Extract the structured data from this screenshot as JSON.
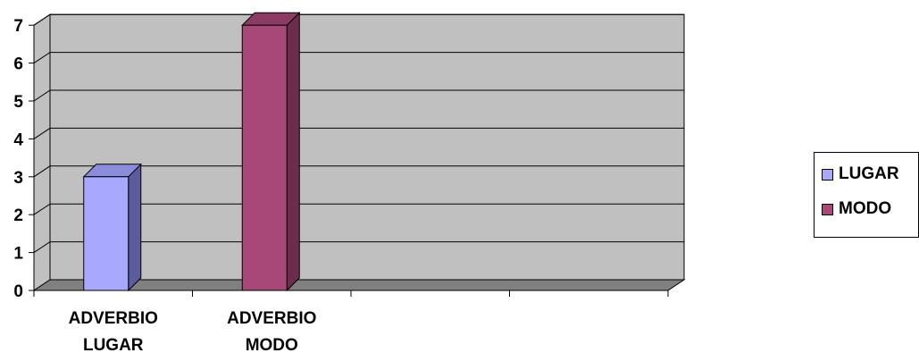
{
  "chart_data": {
    "type": "bar",
    "categories": [
      [
        "ADVERBIO",
        "LUGAR"
      ],
      [
        "ADVERBIO",
        "MODO"
      ],
      [
        "",
        ""
      ],
      [
        "",
        ""
      ]
    ],
    "series": [
      {
        "name": "LUGAR",
        "values": [
          3,
          null,
          null,
          null
        ],
        "color": "#a8a8ff"
      },
      {
        "name": "MODO",
        "values": [
          null,
          7,
          null,
          null
        ],
        "color": "#a84878"
      }
    ],
    "yticks": [
      "0",
      "1",
      "2",
      "3",
      "4",
      "5",
      "6",
      "7"
    ],
    "ylim": [
      0,
      7
    ],
    "grid": true,
    "three_d": true,
    "legend_position": "right",
    "colors": {
      "wall": "#c0c0c0",
      "floor": "#808080",
      "gridline": "#000000",
      "lugar_side": "#5c5c9c",
      "lugar_top": "#8c8cdc",
      "modo_side": "#6c2c4c",
      "modo_top": "#8c3c64"
    }
  },
  "legend": {
    "items": [
      {
        "label": "LUGAR",
        "color": "#a8a8ff"
      },
      {
        "label": "MODO",
        "color": "#a84878"
      }
    ]
  }
}
